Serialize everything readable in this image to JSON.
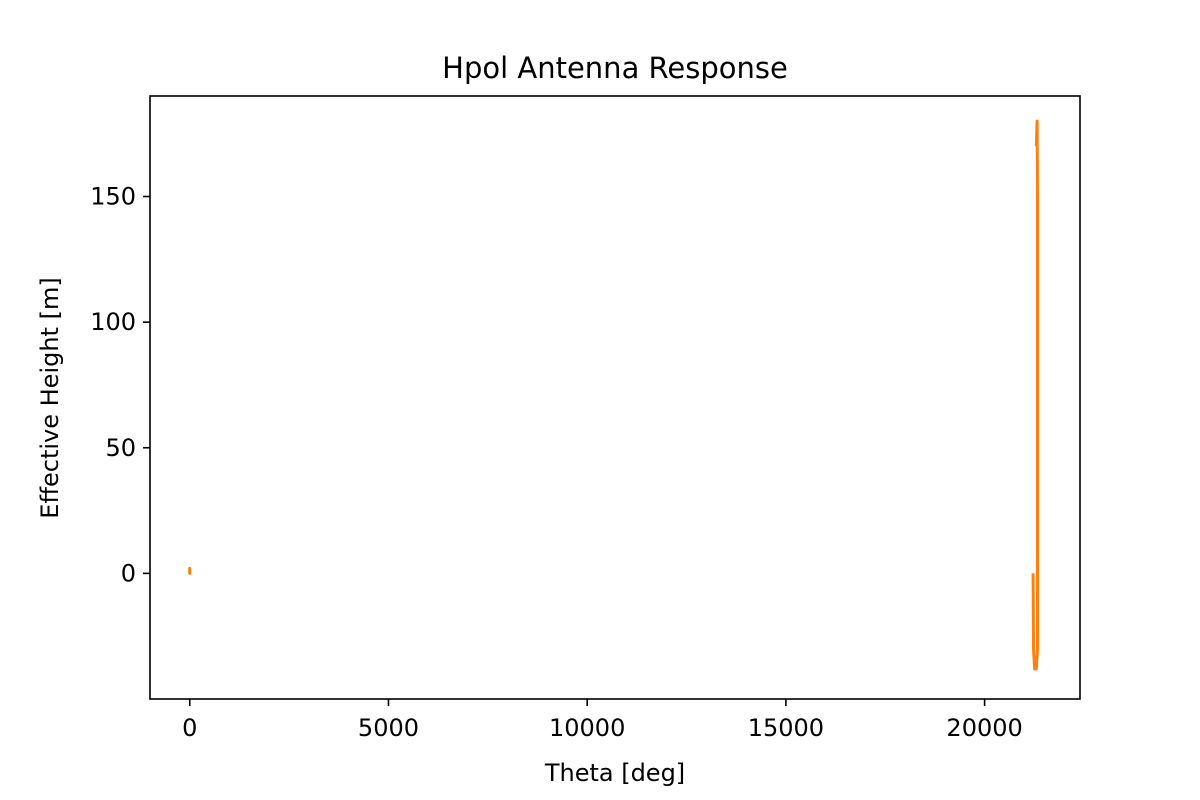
{
  "chart_data": {
    "type": "line",
    "title": "Hpol Antenna Response",
    "xlabel": "Theta [deg]",
    "ylabel": "Effective Height [m]",
    "xlim": [
      -1000,
      22400
    ],
    "ylim": [
      -50,
      190
    ],
    "x_ticks": [
      0,
      5000,
      10000,
      15000,
      20000
    ],
    "x_tick_labels": [
      "0",
      "5000",
      "10000",
      "15000",
      "20000"
    ],
    "y_ticks": [
      0,
      50,
      100,
      150
    ],
    "y_tick_labels": [
      "0",
      "50",
      "100",
      "150"
    ],
    "grid": false,
    "series": [
      {
        "color": "#ff7f0e",
        "segments": [
          {
            "x": [
              0,
              0,
              0,
              0
            ],
            "y": [
              0,
              2,
              0,
              2
            ]
          },
          {
            "x": [
              21220,
              21230,
              21260,
              21300,
              21330,
              21330,
              21320,
              21300
            ],
            "y": [
              0,
              -30,
              -38,
              -38,
              -30,
              150,
              180,
              170
            ]
          }
        ]
      }
    ]
  }
}
